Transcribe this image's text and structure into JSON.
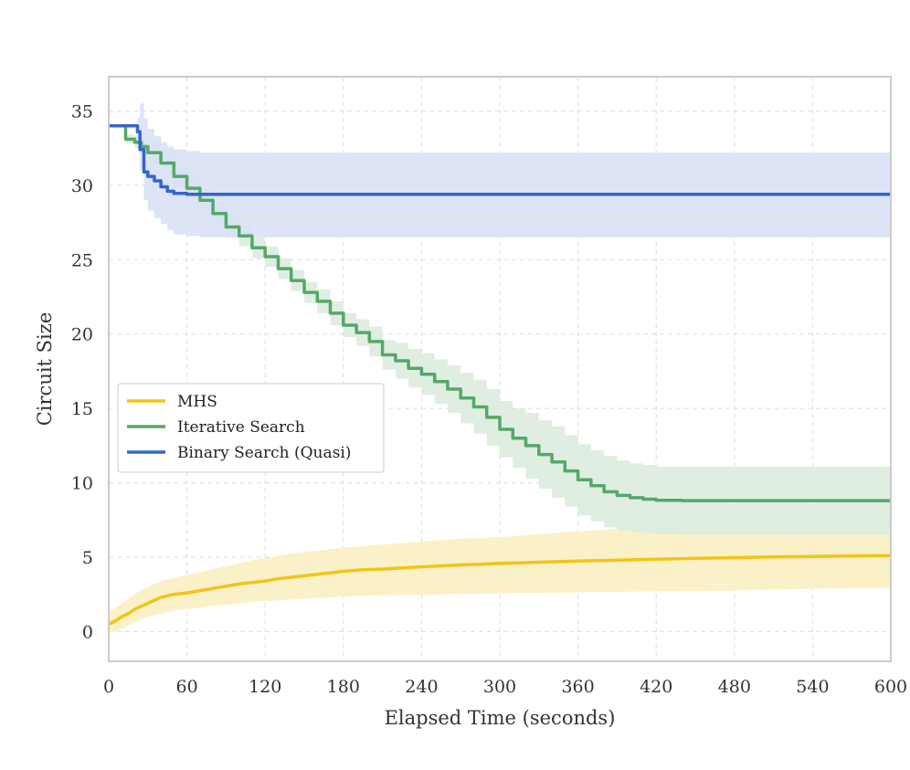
{
  "chart_data": {
    "type": "line",
    "title": "",
    "xlabel": "Elapsed Time (seconds)",
    "ylabel": "Circuit Size",
    "xlim": [
      0,
      600
    ],
    "ylim": [
      -2,
      37.3
    ],
    "xticks": [
      0,
      60,
      120,
      180,
      240,
      300,
      360,
      420,
      480,
      540,
      600
    ],
    "yticks": [
      0,
      5,
      10,
      15,
      20,
      25,
      30,
      35
    ],
    "grid": true,
    "legend_position": "center-left",
    "series": [
      {
        "name": "MHS",
        "color": "#f2c418",
        "band_color": "#fbefc2",
        "step": false,
        "x": [
          0,
          5,
          10,
          15,
          20,
          25,
          30,
          35,
          40,
          45,
          50,
          60,
          70,
          80,
          90,
          100,
          110,
          120,
          130,
          140,
          150,
          160,
          170,
          180,
          195,
          210,
          225,
          240,
          255,
          270,
          285,
          300,
          315,
          330,
          345,
          360,
          380,
          400,
          420,
          440,
          460,
          480,
          500,
          520,
          540,
          560,
          580,
          600
        ],
        "y": [
          0.5,
          0.7,
          1.0,
          1.2,
          1.5,
          1.7,
          1.9,
          2.1,
          2.3,
          2.4,
          2.5,
          2.6,
          2.75,
          2.9,
          3.05,
          3.2,
          3.3,
          3.4,
          3.55,
          3.65,
          3.75,
          3.85,
          3.95,
          4.05,
          4.15,
          4.2,
          4.28,
          4.35,
          4.42,
          4.48,
          4.53,
          4.58,
          4.62,
          4.66,
          4.7,
          4.74,
          4.78,
          4.82,
          4.86,
          4.9,
          4.94,
          4.97,
          5.0,
          5.03,
          5.05,
          5.07,
          5.09,
          5.1
        ],
        "lower": [
          -0.1,
          0.0,
          0.2,
          0.4,
          0.6,
          0.8,
          1.0,
          1.1,
          1.2,
          1.3,
          1.4,
          1.5,
          1.6,
          1.7,
          1.8,
          1.9,
          2.0,
          2.05,
          2.1,
          2.15,
          2.2,
          2.25,
          2.3,
          2.35,
          2.4,
          2.42,
          2.45,
          2.48,
          2.5,
          2.52,
          2.54,
          2.56,
          2.58,
          2.6,
          2.62,
          2.64,
          2.66,
          2.68,
          2.7,
          2.72,
          2.74,
          2.76,
          2.8,
          2.84,
          2.88,
          2.9,
          2.92,
          2.95
        ],
        "upper": [
          1.3,
          1.6,
          1.9,
          2.2,
          2.5,
          2.8,
          3.0,
          3.2,
          3.4,
          3.5,
          3.6,
          3.8,
          4.0,
          4.2,
          4.4,
          4.6,
          4.8,
          4.95,
          5.1,
          5.25,
          5.35,
          5.45,
          5.55,
          5.65,
          5.75,
          5.85,
          5.95,
          6.05,
          6.15,
          6.25,
          6.3,
          6.35,
          6.45,
          6.55,
          6.65,
          6.75,
          6.85,
          6.95,
          7.0,
          7.05,
          7.1,
          7.15,
          7.2,
          7.25,
          7.3,
          7.35,
          7.4,
          7.45
        ]
      },
      {
        "name": "Iterative Search",
        "color": "#55a868",
        "band_color": "#dcecde",
        "step": true,
        "x": [
          0,
          10,
          13,
          20,
          25,
          30,
          40,
          50,
          60,
          70,
          80,
          90,
          100,
          110,
          120,
          130,
          140,
          150,
          160,
          170,
          180,
          190,
          200,
          210,
          220,
          230,
          240,
          250,
          260,
          270,
          280,
          290,
          300,
          310,
          320,
          330,
          340,
          350,
          360,
          370,
          380,
          390,
          400,
          410,
          420,
          440,
          460,
          480,
          500,
          550,
          600
        ],
        "y": [
          34.0,
          34.0,
          33.1,
          32.9,
          32.6,
          32.2,
          31.5,
          30.6,
          29.8,
          29.0,
          28.1,
          27.2,
          26.6,
          25.8,
          25.2,
          24.4,
          23.6,
          22.8,
          22.2,
          21.4,
          20.6,
          20.1,
          19.5,
          18.6,
          18.2,
          17.7,
          17.3,
          16.8,
          16.3,
          15.7,
          15.1,
          14.4,
          13.6,
          13.0,
          12.5,
          11.9,
          11.4,
          10.8,
          10.2,
          9.8,
          9.4,
          9.15,
          9.0,
          8.9,
          8.82,
          8.8,
          8.8,
          8.8,
          8.8,
          8.8,
          8.8
        ],
        "lower": [
          34.0,
          34.0,
          32.8,
          32.5,
          32.0,
          31.5,
          30.8,
          29.9,
          29.1,
          28.3,
          27.4,
          26.5,
          25.9,
          25.1,
          24.5,
          23.7,
          22.9,
          22.1,
          21.4,
          20.6,
          19.8,
          19.2,
          18.5,
          17.6,
          17.0,
          16.4,
          15.9,
          15.3,
          14.7,
          14.0,
          13.3,
          12.5,
          11.7,
          11.0,
          10.3,
          9.6,
          9.0,
          8.4,
          7.8,
          7.4,
          7.0,
          6.8,
          6.7,
          6.6,
          6.55,
          6.5,
          6.5,
          6.5,
          6.5,
          6.5,
          6.5
        ],
        "upper": [
          34.0,
          34.0,
          33.4,
          33.3,
          33.2,
          32.9,
          32.2,
          31.3,
          30.5,
          29.7,
          28.8,
          27.9,
          27.3,
          26.5,
          25.9,
          25.1,
          24.3,
          23.5,
          23.0,
          22.2,
          21.4,
          21.0,
          20.5,
          19.6,
          19.4,
          19.0,
          18.7,
          18.3,
          17.9,
          17.4,
          16.9,
          16.3,
          15.5,
          15.0,
          14.7,
          14.2,
          13.8,
          13.2,
          12.6,
          12.2,
          11.8,
          11.5,
          11.3,
          11.2,
          11.1,
          11.1,
          11.1,
          11.1,
          11.1,
          11.1,
          11.1
        ]
      },
      {
        "name": "Binary Search (Quasi)",
        "color": "#3366cc",
        "band_color": "#d8e1f5",
        "step": true,
        "x": [
          0,
          22,
          24,
          27,
          30,
          35,
          40,
          45,
          50,
          60,
          70,
          600
        ],
        "y": [
          34.0,
          33.6,
          32.4,
          30.9,
          30.6,
          30.3,
          29.9,
          29.6,
          29.45,
          29.4,
          29.4,
          29.4
        ],
        "lower": [
          34.0,
          33.0,
          31.0,
          29.0,
          28.3,
          27.8,
          27.4,
          27.0,
          26.7,
          26.6,
          26.5,
          26.5
        ],
        "upper": [
          34.0,
          34.5,
          35.5,
          34.5,
          33.8,
          33.3,
          32.9,
          32.6,
          32.4,
          32.3,
          32.2,
          32.2
        ]
      }
    ]
  }
}
